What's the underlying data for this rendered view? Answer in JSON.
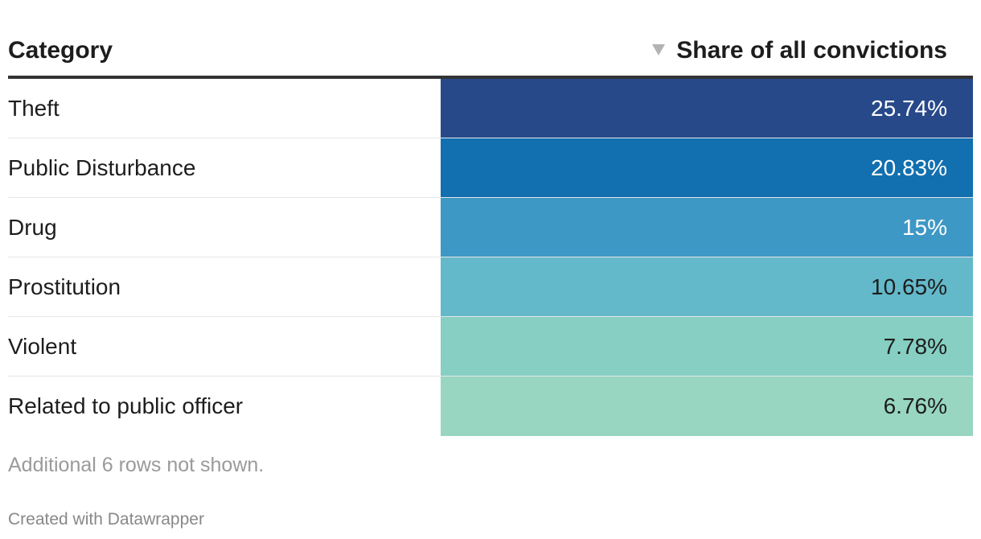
{
  "chart_data": {
    "type": "table",
    "columns": [
      "Category",
      "Share of all convictions"
    ],
    "sort_column": "Share of all convictions",
    "sort_direction": "descending",
    "rows": [
      {
        "category": "Theft",
        "value": 25.74,
        "label": "25.74%",
        "color": "#27498a",
        "text_color": "#ffffff"
      },
      {
        "category": "Public Disturbance",
        "value": 20.83,
        "label": "20.83%",
        "color": "#126fb0",
        "text_color": "#ffffff"
      },
      {
        "category": "Drug",
        "value": 15,
        "label": "15%",
        "color": "#3e98c5",
        "text_color": "#ffffff"
      },
      {
        "category": "Prostitution",
        "value": 10.65,
        "label": "10.65%",
        "color": "#63b9ca",
        "text_color": "#1d1d1d"
      },
      {
        "category": "Violent",
        "value": 7.78,
        "label": "7.78%",
        "color": "#86cfc2",
        "text_color": "#1d1d1d"
      },
      {
        "category": "Related to public officer",
        "value": 6.76,
        "label": "6.76%",
        "color": "#98d6c2",
        "text_color": "#1d1d1d"
      }
    ]
  },
  "sort_icon": "sort-descending-icon",
  "footnote": "Additional 6 rows not shown.",
  "credit": "Created with Datawrapper"
}
